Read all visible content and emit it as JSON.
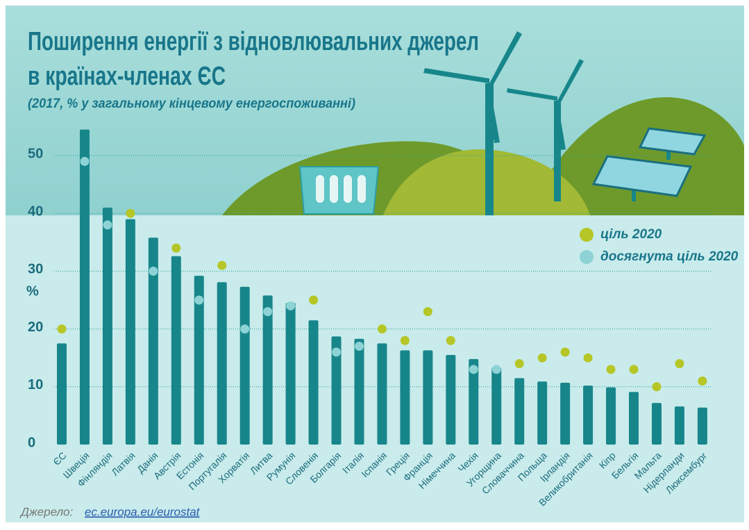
{
  "chart_data": {
    "type": "bar",
    "title": [
      "Поширення енергії з відновлювальних джерел",
      "в країнах-членах ЄС"
    ],
    "subtitle": "(2017, % у загальному кінцевому енергоспоживанні)",
    "y_label": "%",
    "categories": [
      "ЄС",
      "Швеція",
      "Фінляндія",
      "Латвія",
      "Данія",
      "Австрія",
      "Естонія",
      "Португалія",
      "Хорватія",
      "Литва",
      "Румунія",
      "Словенія",
      "Болгарія",
      "Італія",
      "Іспанія",
      "Греція",
      "Франція",
      "Німеччина",
      "Чехія",
      "Угорщина",
      "Словаччина",
      "Польща",
      "Ірландія",
      "Великобританія",
      "Кіпр",
      "Бельгія",
      "Мальта",
      "Нідерланди",
      "Люксембург"
    ],
    "values": [
      17.5,
      54.5,
      41.0,
      39.0,
      35.8,
      32.6,
      29.2,
      28.1,
      27.3,
      25.8,
      24.5,
      21.5,
      18.7,
      18.3,
      17.5,
      16.3,
      16.3,
      15.5,
      14.8,
      13.3,
      11.5,
      10.9,
      10.7,
      10.2,
      9.9,
      9.1,
      7.2,
      6.6,
      6.4
    ],
    "color": "#17868b",
    "series": [
      {
        "name": "ціль 2020",
        "color": "#b6c627",
        "values": [
          20,
          null,
          null,
          40,
          null,
          34,
          null,
          31,
          null,
          null,
          null,
          25,
          null,
          null,
          20,
          18,
          23,
          18,
          null,
          null,
          14,
          15,
          16,
          15,
          13,
          13,
          10,
          14,
          11
        ]
      },
      {
        "name": "досягнута ціль 2020",
        "color": "#8dd3d5",
        "values": [
          null,
          49,
          38,
          null,
          30,
          null,
          25,
          null,
          20,
          23,
          24,
          null,
          16,
          17,
          null,
          null,
          null,
          null,
          13,
          13,
          null,
          null,
          null,
          null,
          null,
          null,
          null,
          null,
          null
        ]
      }
    ],
    "ylim": [
      0,
      55
    ],
    "yticks": [
      0,
      10,
      20,
      30,
      40,
      50
    ],
    "grid": true,
    "source": {
      "label": "Джерело:",
      "link": "ec.europa.eu/eurostat"
    }
  }
}
